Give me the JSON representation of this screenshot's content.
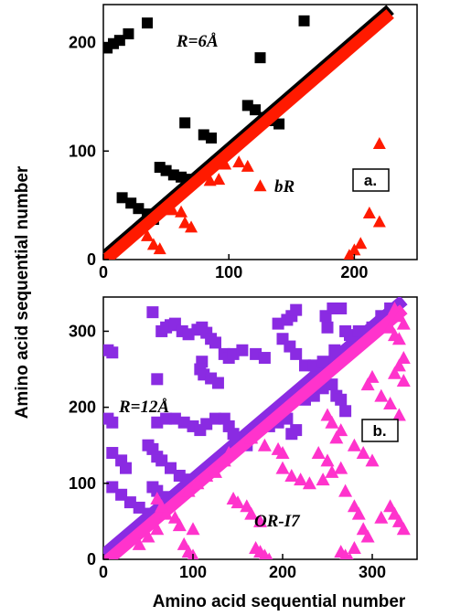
{
  "figure": {
    "xlabel": "Amino acid sequential number",
    "ylabel": "Amino acid sequential number"
  },
  "colors": {
    "black": "#000000",
    "red": "#ff1a00",
    "purple": "#8a2be2",
    "magenta": "#ff33cc"
  },
  "chart_data": [
    {
      "type": "scatter",
      "panel": "a.",
      "radius_label": "R=6Å",
      "protein_label": "bR",
      "xlim": [
        0,
        250
      ],
      "ylim": [
        0,
        235
      ],
      "x_ticks": [
        0,
        100,
        200
      ],
      "y_ticks": [
        0,
        100,
        200
      ],
      "grid": false,
      "series": [
        {
          "marker": "square",
          "color": "#000000",
          "diagonal": {
            "from": 0,
            "to": 225,
            "offset": 2
          },
          "points": [
            [
              3,
              195
            ],
            [
              8,
              199
            ],
            [
              13,
              202
            ],
            [
              20,
              208
            ],
            [
              35,
              218
            ],
            [
              160,
              220
            ],
            [
              125,
              186
            ],
            [
              65,
              126
            ],
            [
              80,
              115
            ],
            [
              86,
              112
            ],
            [
              115,
              142
            ],
            [
              121,
              138
            ],
            [
              128,
              131
            ],
            [
              135,
              128
            ],
            [
              140,
              125
            ],
            [
              15,
              57
            ],
            [
              22,
              52
            ],
            [
              28,
              47
            ],
            [
              35,
              42
            ],
            [
              40,
              37
            ],
            [
              45,
              85
            ],
            [
              50,
              82
            ],
            [
              56,
              78
            ],
            [
              62,
              76
            ],
            [
              68,
              74
            ]
          ]
        },
        {
          "marker": "triangle",
          "color": "#ff1a00",
          "diagonal": {
            "from": 0,
            "to": 225,
            "offset": -2
          },
          "points": [
            [
              220,
              107
            ],
            [
              115,
              86
            ],
            [
              108,
              90
            ],
            [
              125,
              68
            ],
            [
              97,
              88
            ],
            [
              200,
              9
            ],
            [
              196,
              4
            ],
            [
              212,
              43
            ],
            [
              220,
              35
            ],
            [
              205,
              15
            ],
            [
              55,
              46
            ],
            [
              62,
              44
            ],
            [
              85,
              73
            ],
            [
              92,
              74
            ],
            [
              65,
              34
            ],
            [
              70,
              30
            ],
            [
              35,
              22
            ],
            [
              40,
              14
            ],
            [
              45,
              10
            ]
          ]
        }
      ]
    },
    {
      "type": "scatter",
      "panel": "b.",
      "radius_label": "R=12Å",
      "protein_label": "OR-I7",
      "xlim": [
        0,
        350
      ],
      "ylim": [
        0,
        345
      ],
      "x_ticks": [
        0,
        100,
        200,
        300
      ],
      "y_ticks": [
        0,
        100,
        200,
        300
      ],
      "grid": false,
      "series": [
        {
          "marker": "square",
          "color": "#8a2be2",
          "diagonal": {
            "from": 0,
            "to": 330,
            "offset": 6
          },
          "points": [
            [
              5,
              275
            ],
            [
              10,
              272
            ],
            [
              5,
              185
            ],
            [
              10,
              180
            ],
            [
              55,
              325
            ],
            [
              60,
              237
            ],
            [
              65,
              300
            ],
            [
              70,
              305
            ],
            [
              75,
              308
            ],
            [
              80,
              310
            ],
            [
              88,
              300
            ],
            [
              95,
              296
            ],
            [
              105,
              302
            ],
            [
              110,
              305
            ],
            [
              115,
              298
            ],
            [
              120,
              290
            ],
            [
              125,
              285
            ],
            [
              135,
              270
            ],
            [
              140,
              265
            ],
            [
              110,
              260
            ],
            [
              108,
              250
            ],
            [
              112,
              243
            ],
            [
              120,
              238
            ],
            [
              128,
              232
            ],
            [
              145,
              270
            ],
            [
              155,
              275
            ],
            [
              170,
              270
            ],
            [
              180,
              265
            ],
            [
              195,
              310
            ],
            [
              205,
              315
            ],
            [
              210,
              320
            ],
            [
              215,
              328
            ],
            [
              200,
              290
            ],
            [
              208,
              280
            ],
            [
              215,
              270
            ],
            [
              225,
              255
            ],
            [
              235,
              255
            ],
            [
              245,
              260
            ],
            [
              258,
              275
            ],
            [
              260,
              260
            ],
            [
              250,
              305
            ],
            [
              248,
              320
            ],
            [
              256,
              330
            ],
            [
              265,
              330
            ],
            [
              270,
              300
            ],
            [
              275,
              295
            ],
            [
              285,
              300
            ],
            [
              300,
              305
            ],
            [
              310,
              320
            ],
            [
              320,
              330
            ],
            [
              60,
              180
            ],
            [
              70,
              185
            ],
            [
              80,
              185
            ],
            [
              90,
              180
            ],
            [
              100,
              175
            ],
            [
              108,
              170
            ],
            [
              115,
              178
            ],
            [
              125,
              185
            ],
            [
              135,
              185
            ],
            [
              140,
              175
            ],
            [
              145,
              165
            ],
            [
              160,
              150
            ],
            [
              165,
              160
            ],
            [
              170,
              170
            ],
            [
              185,
              175
            ],
            [
              195,
              180
            ],
            [
              205,
              185
            ],
            [
              210,
              165
            ],
            [
              215,
              170
            ],
            [
              225,
              210
            ],
            [
              235,
              215
            ],
            [
              245,
              225
            ],
            [
              255,
              230
            ],
            [
              260,
              215
            ],
            [
              265,
              210
            ],
            [
              270,
              195
            ],
            [
              10,
              140
            ],
            [
              20,
              130
            ],
            [
              25,
              120
            ],
            [
              50,
              150
            ],
            [
              55,
              145
            ],
            [
              60,
              135
            ],
            [
              65,
              130
            ],
            [
              75,
              120
            ],
            [
              85,
              110
            ],
            [
              95,
              105
            ],
            [
              10,
              95
            ],
            [
              20,
              85
            ],
            [
              30,
              75
            ],
            [
              40,
              68
            ],
            [
              50,
              60
            ],
            [
              55,
              95
            ],
            [
              60,
              90
            ],
            [
              70,
              82
            ],
            [
              80,
              78
            ]
          ]
        },
        {
          "marker": "triangle",
          "color": "#ff33cc",
          "diagonal": {
            "from": 0,
            "to": 330,
            "offset": -6
          },
          "points": [
            [
              325,
              330
            ],
            [
              330,
              320
            ],
            [
              335,
              310
            ],
            [
              320,
              305
            ],
            [
              325,
              295
            ],
            [
              330,
              290
            ],
            [
              335,
              265
            ],
            [
              330,
              255
            ],
            [
              325,
              245
            ],
            [
              335,
              235
            ],
            [
              300,
              240
            ],
            [
              295,
              230
            ],
            [
              310,
              215
            ],
            [
              320,
              205
            ],
            [
              330,
              190
            ],
            [
              250,
              190
            ],
            [
              255,
              180
            ],
            [
              265,
              170
            ],
            [
              260,
              160
            ],
            [
              280,
              150
            ],
            [
              290,
              140
            ],
            [
              300,
              130
            ],
            [
              240,
              140
            ],
            [
              250,
              130
            ],
            [
              265,
              120
            ],
            [
              200,
              120
            ],
            [
              210,
              110
            ],
            [
              220,
              105
            ],
            [
              230,
              100
            ],
            [
              245,
              105
            ],
            [
              255,
              115
            ],
            [
              270,
              90
            ],
            [
              280,
              70
            ],
            [
              285,
              60
            ],
            [
              290,
              40
            ],
            [
              295,
              30
            ],
            [
              310,
              55
            ],
            [
              325,
              60
            ],
            [
              330,
              50
            ],
            [
              335,
              40
            ],
            [
              320,
              70
            ],
            [
              200,
              140
            ],
            [
              195,
              145
            ],
            [
              180,
              150
            ],
            [
              165,
              160
            ],
            [
              140,
              140
            ],
            [
              135,
              130
            ],
            [
              125,
              115
            ],
            [
              115,
              110
            ],
            [
              105,
              100
            ],
            [
              95,
              90
            ],
            [
              145,
              80
            ],
            [
              150,
              75
            ],
            [
              160,
              70
            ],
            [
              165,
              60
            ],
            [
              175,
              50
            ],
            [
              60,
              80
            ],
            [
              65,
              70
            ],
            [
              70,
              60
            ],
            [
              80,
              55
            ],
            [
              85,
              45
            ],
            [
              100,
              40
            ],
            [
              60,
              40
            ],
            [
              50,
              30
            ],
            [
              40,
              20
            ],
            [
              90,
              20
            ],
            [
              95,
              10
            ],
            [
              100,
              5
            ],
            [
              170,
              15
            ],
            [
              175,
              10
            ],
            [
              180,
              5
            ],
            [
              185,
              0
            ],
            [
              265,
              10
            ],
            [
              270,
              5
            ],
            [
              275,
              0
            ],
            [
              280,
              15
            ]
          ]
        }
      ]
    }
  ]
}
